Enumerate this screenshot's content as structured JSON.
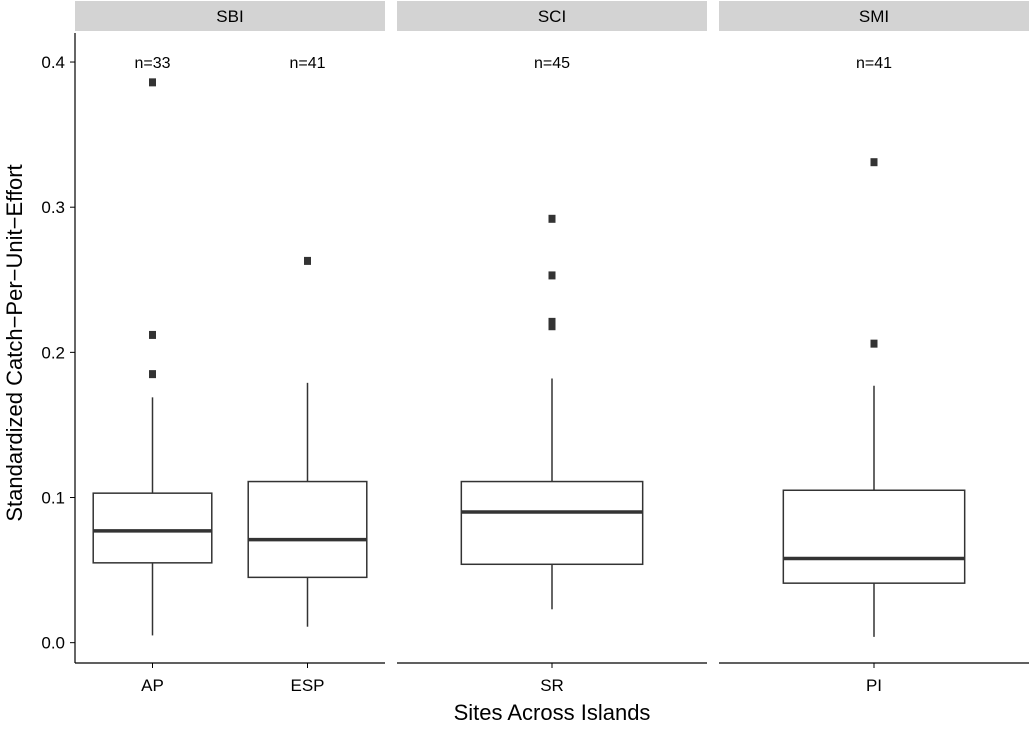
{
  "chart_data": {
    "type": "boxplot",
    "title": "",
    "xlabel": "Sites Across Islands",
    "ylabel": "Standardized Catch−Per−Unit−Effort",
    "ylim": [
      -0.014,
      0.42
    ],
    "yticks": [
      0.0,
      0.1,
      0.2,
      0.3,
      0.4
    ],
    "ytick_labels": [
      "0.0",
      "0.1",
      "0.2",
      "0.3",
      "0.4"
    ],
    "grid": false,
    "legend": "none",
    "colors": {
      "strip_fill": "#d3d3d3",
      "box_line": "#333333",
      "axis": "#000000",
      "box_fill": "#ffffff"
    },
    "panels": [
      {
        "label": "SBI",
        "groups": [
          {
            "label": "AP",
            "count_label": "n=33",
            "min": 0.005,
            "q1": 0.055,
            "median": 0.077,
            "q3": 0.103,
            "max": 0.169,
            "outliers": [
              0.185,
              0.212,
              0.386
            ]
          },
          {
            "label": "ESP",
            "count_label": "n=41",
            "min": 0.011,
            "q1": 0.045,
            "median": 0.071,
            "q3": 0.111,
            "max": 0.179,
            "outliers": [
              0.263
            ]
          }
        ]
      },
      {
        "label": "SCI",
        "groups": [
          {
            "label": "SR",
            "count_label": "n=45",
            "min": 0.023,
            "q1": 0.054,
            "median": 0.09,
            "q3": 0.111,
            "max": 0.182,
            "outliers": [
              0.218,
              0.221,
              0.253,
              0.292
            ]
          }
        ]
      },
      {
        "label": "SMI",
        "groups": [
          {
            "label": "PI",
            "count_label": "n=41",
            "min": 0.004,
            "q1": 0.041,
            "median": 0.058,
            "q3": 0.105,
            "max": 0.177,
            "outliers": [
              0.206,
              0.331
            ]
          }
        ]
      }
    ]
  }
}
